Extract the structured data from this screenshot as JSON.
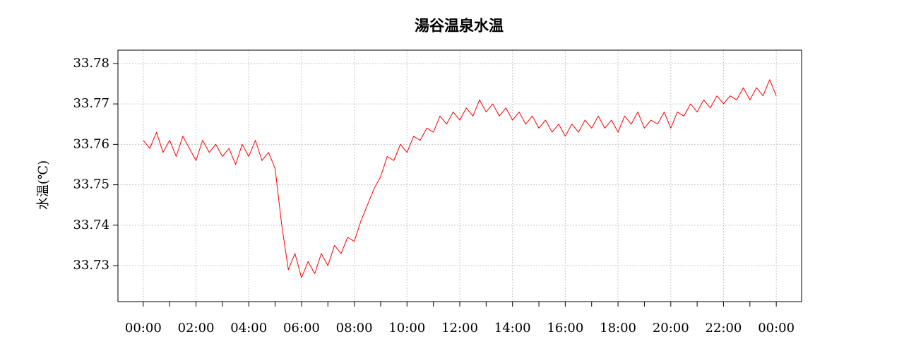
{
  "chart_data": {
    "type": "line",
    "title": "湯谷温泉水温",
    "y_label": "水温(℃)",
    "x": [
      0,
      0.25,
      0.5,
      0.75,
      1,
      1.25,
      1.5,
      1.75,
      2,
      2.25,
      2.5,
      2.75,
      3,
      3.25,
      3.5,
      3.75,
      4,
      4.25,
      4.5,
      4.75,
      5,
      5.25,
      5.5,
      5.75,
      6,
      6.25,
      6.5,
      6.75,
      7,
      7.25,
      7.5,
      7.75,
      8,
      8.25,
      8.5,
      8.75,
      9,
      9.25,
      9.5,
      9.75,
      10,
      10.25,
      10.5,
      10.75,
      11,
      11.25,
      11.5,
      11.75,
      12,
      12.25,
      12.5,
      12.75,
      13,
      13.25,
      13.5,
      13.75,
      14,
      14.25,
      14.5,
      14.75,
      15,
      15.25,
      15.5,
      15.75,
      16,
      16.25,
      16.5,
      16.75,
      17,
      17.25,
      17.5,
      17.75,
      18,
      18.25,
      18.5,
      18.75,
      19,
      19.25,
      19.5,
      19.75,
      20,
      20.25,
      20.5,
      20.75,
      21,
      21.25,
      21.5,
      21.75,
      22,
      22.25,
      22.5,
      22.75,
      23,
      23.25,
      23.5,
      23.75,
      24
    ],
    "series": [
      {
        "color": "#ff0000",
        "values": [
          33.761,
          33.759,
          33.763,
          33.758,
          33.761,
          33.757,
          33.762,
          33.759,
          33.756,
          33.761,
          33.758,
          33.76,
          33.757,
          33.759,
          33.755,
          33.76,
          33.757,
          33.761,
          33.756,
          33.758,
          33.754,
          33.74,
          33.729,
          33.733,
          33.727,
          33.731,
          33.728,
          33.733,
          33.73,
          33.735,
          33.733,
          33.737,
          33.736,
          33.741,
          33.745,
          33.749,
          33.752,
          33.757,
          33.756,
          33.76,
          33.758,
          33.762,
          33.761,
          33.764,
          33.763,
          33.767,
          33.765,
          33.768,
          33.766,
          33.769,
          33.767,
          33.771,
          33.768,
          33.77,
          33.767,
          33.769,
          33.766,
          33.768,
          33.765,
          33.767,
          33.764,
          33.766,
          33.763,
          33.765,
          33.762,
          33.765,
          33.763,
          33.766,
          33.764,
          33.767,
          33.764,
          33.766,
          33.763,
          33.767,
          33.765,
          33.768,
          33.764,
          33.766,
          33.765,
          33.768,
          33.764,
          33.768,
          33.767,
          33.77,
          33.768,
          33.771,
          33.769,
          33.772,
          33.77,
          33.772,
          33.771,
          33.774,
          33.771,
          33.774,
          33.772,
          33.776,
          33.772
        ]
      }
    ],
    "xlim": [
      -0.96,
      24.96
    ],
    "xticks": [
      {
        "value": 0,
        "label": "00:00"
      },
      {
        "value": 2,
        "label": "02:00"
      },
      {
        "value": 4,
        "label": "04:00"
      },
      {
        "value": 6,
        "label": "06:00"
      },
      {
        "value": 8,
        "label": "08:00"
      },
      {
        "value": 10,
        "label": "10:00"
      },
      {
        "value": 12,
        "label": "12:00"
      },
      {
        "value": 14,
        "label": "14:00"
      },
      {
        "value": 16,
        "label": "16:00"
      },
      {
        "value": 18,
        "label": "18:00"
      },
      {
        "value": 20,
        "label": "20:00"
      },
      {
        "value": 22,
        "label": "22:00"
      },
      {
        "value": 24,
        "label": "00:00"
      }
    ],
    "xminorticks": [
      1,
      3,
      5,
      7,
      9,
      11,
      13,
      15,
      17,
      19,
      21,
      23
    ],
    "ylim": [
      33.7211,
      33.7833
    ],
    "yticks": [
      33.73,
      33.74,
      33.75,
      33.76,
      33.77,
      33.78
    ],
    "grid": true
  }
}
